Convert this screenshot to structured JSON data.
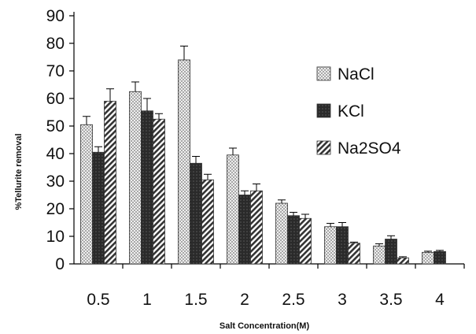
{
  "chart_data": {
    "type": "bar",
    "title": "",
    "xlabel": "Salt Concentration(M)",
    "ylabel": "%Tellurite removal",
    "ylim": [
      0,
      90
    ],
    "yticks": [
      0,
      10,
      20,
      30,
      40,
      50,
      60,
      70,
      80,
      90
    ],
    "categories": [
      "0.5",
      "1",
      "1.5",
      "2",
      "2.5",
      "3",
      "3.5",
      "4"
    ],
    "grid": false,
    "legend_position": "right",
    "series": [
      {
        "name": "NaCl",
        "pattern": "dotted",
        "color": "#d8d8d8",
        "values": [
          50.5,
          62.5,
          74,
          39.5,
          22,
          13.5,
          6.5,
          4.2
        ],
        "errors": [
          3,
          3.5,
          5,
          2.5,
          1.2,
          1.2,
          0.8,
          0.4
        ]
      },
      {
        "name": "KCl",
        "pattern": "dark",
        "color": "#333333",
        "values": [
          40.5,
          55.5,
          36.5,
          25,
          17.5,
          13.5,
          9,
          4.5
        ],
        "errors": [
          2,
          4.5,
          2.5,
          1.5,
          1.2,
          1.5,
          1.2,
          0.4
        ]
      },
      {
        "name": "Na2SO4",
        "pattern": "hatched",
        "color": "#666666",
        "values": [
          59,
          52.5,
          30.5,
          26.5,
          16.5,
          7.5,
          2.2,
          null
        ],
        "errors": [
          4.5,
          2,
          2,
          2.5,
          1.5,
          0.4,
          0.4,
          null
        ]
      }
    ]
  }
}
